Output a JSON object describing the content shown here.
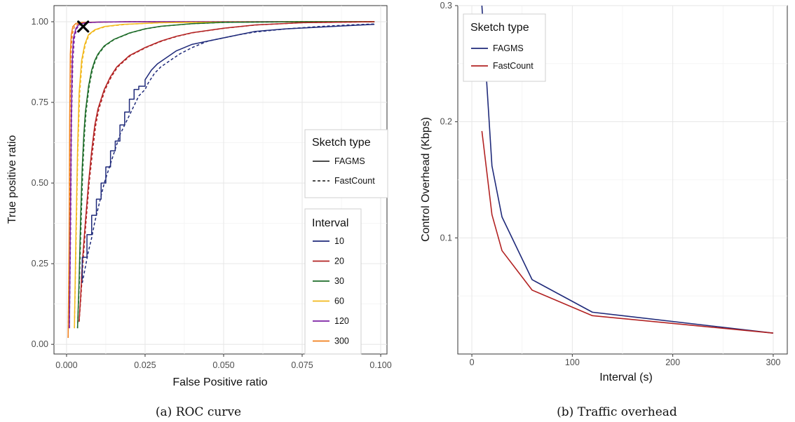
{
  "chart_data": [
    {
      "type": "line",
      "caption": "(a) ROC curve",
      "xlabel": "False Positive ratio",
      "ylabel": "True positive ratio",
      "xlim": [
        -0.004,
        0.102
      ],
      "ylim": [
        -0.03,
        1.05
      ],
      "xticks": [
        0.0,
        0.025,
        0.05,
        0.075,
        0.1
      ],
      "xtick_labels": [
        "0.000",
        "0.025",
        "0.050",
        "0.075",
        "0.100"
      ],
      "yticks": [
        0.0,
        0.25,
        0.5,
        0.75,
        1.0
      ],
      "ytick_labels": [
        "0.00",
        "0.25",
        "0.50",
        "0.75",
        "1.00"
      ],
      "grid": true,
      "linetype_legend": {
        "title": "Sketch type",
        "entries": [
          {
            "label": "FAGMS",
            "dash": "solid"
          },
          {
            "label": "FastCount",
            "dash": "dashed"
          }
        ]
      },
      "color_legend": {
        "title": "Interval",
        "entries": [
          {
            "label": "10",
            "color": "#1f2a7a"
          },
          {
            "label": "20",
            "color": "#b22222"
          },
          {
            "label": "30",
            "color": "#1d6b28"
          },
          {
            "label": "60",
            "color": "#f2b81b"
          },
          {
            "label": "120",
            "color": "#7b1fa2"
          },
          {
            "label": "300",
            "color": "#f07f1b"
          }
        ]
      },
      "marker": {
        "symbol": "X",
        "x": 0.0053,
        "y": 0.985
      },
      "series": [
        {
          "interval": "300",
          "sketch": "FAGMS",
          "color": "#f07f1b",
          "dash": "solid",
          "x": [
            0.0005,
            0.0008,
            0.001,
            0.0012,
            0.0015,
            0.002,
            0.003,
            0.005,
            0.01,
            0.02,
            0.05,
            0.098
          ],
          "y": [
            0.02,
            0.3,
            0.7,
            0.9,
            0.96,
            0.985,
            0.995,
            0.998,
            0.999,
            1.0,
            1.0,
            1.0
          ]
        },
        {
          "interval": "300",
          "sketch": "FastCount",
          "color": "#f07f1b",
          "dash": "dashed",
          "x": [
            0.0005,
            0.0009,
            0.0011,
            0.0014,
            0.0018,
            0.0025,
            0.004,
            0.007,
            0.02,
            0.05,
            0.098
          ],
          "y": [
            0.02,
            0.3,
            0.7,
            0.9,
            0.96,
            0.985,
            0.995,
            0.998,
            1.0,
            1.0,
            1.0
          ]
        },
        {
          "interval": "120",
          "sketch": "FAGMS",
          "color": "#7b1fa2",
          "dash": "solid",
          "x": [
            0.0009,
            0.0012,
            0.0015,
            0.0018,
            0.0022,
            0.003,
            0.004,
            0.006,
            0.01,
            0.02,
            0.05,
            0.098
          ],
          "y": [
            0.05,
            0.35,
            0.7,
            0.88,
            0.95,
            0.98,
            0.992,
            0.997,
            0.999,
            1.0,
            1.0,
            1.0
          ]
        },
        {
          "interval": "120",
          "sketch": "FastCount",
          "color": "#7b1fa2",
          "dash": "dashed",
          "x": [
            0.0009,
            0.0013,
            0.0016,
            0.002,
            0.0025,
            0.0033,
            0.0045,
            0.0065,
            0.011,
            0.02,
            0.05,
            0.098
          ],
          "y": [
            0.05,
            0.35,
            0.7,
            0.88,
            0.95,
            0.98,
            0.992,
            0.997,
            0.999,
            1.0,
            1.0,
            1.0
          ]
        },
        {
          "interval": "60",
          "sketch": "FAGMS",
          "color": "#f2b81b",
          "dash": "solid",
          "x": [
            0.0025,
            0.003,
            0.0035,
            0.004,
            0.0048,
            0.0058,
            0.007,
            0.009,
            0.012,
            0.018,
            0.03,
            0.05,
            0.075,
            0.098
          ],
          "y": [
            0.05,
            0.35,
            0.6,
            0.78,
            0.88,
            0.93,
            0.96,
            0.975,
            0.985,
            0.992,
            0.997,
            0.999,
            1.0,
            1.0
          ]
        },
        {
          "interval": "60",
          "sketch": "FastCount",
          "color": "#f2b81b",
          "dash": "dashed",
          "x": [
            0.0025,
            0.0031,
            0.0036,
            0.0042,
            0.005,
            0.006,
            0.0072,
            0.0093,
            0.0125,
            0.019,
            0.03,
            0.05,
            0.075,
            0.098
          ],
          "y": [
            0.05,
            0.35,
            0.6,
            0.78,
            0.88,
            0.93,
            0.96,
            0.975,
            0.985,
            0.992,
            0.997,
            0.999,
            1.0,
            1.0
          ]
        },
        {
          "interval": "30",
          "sketch": "FAGMS",
          "color": "#1d6b28",
          "dash": "solid",
          "x": [
            0.0035,
            0.004,
            0.0045,
            0.005,
            0.0055,
            0.006,
            0.007,
            0.008,
            0.009,
            0.01,
            0.012,
            0.015,
            0.02,
            0.025,
            0.03,
            0.04,
            0.05,
            0.075,
            0.098
          ],
          "y": [
            0.05,
            0.2,
            0.4,
            0.55,
            0.65,
            0.72,
            0.8,
            0.85,
            0.88,
            0.9,
            0.925,
            0.945,
            0.965,
            0.978,
            0.986,
            0.994,
            0.998,
            1.0,
            1.0
          ]
        },
        {
          "interval": "30",
          "sketch": "FastCount",
          "color": "#1d6b28",
          "dash": "dashed",
          "x": [
            0.0035,
            0.0041,
            0.0047,
            0.0052,
            0.0057,
            0.0062,
            0.0072,
            0.0082,
            0.0092,
            0.0102,
            0.0122,
            0.0152,
            0.0202,
            0.0252,
            0.0302,
            0.0402,
            0.0502,
            0.075,
            0.098
          ],
          "y": [
            0.05,
            0.2,
            0.4,
            0.55,
            0.65,
            0.72,
            0.8,
            0.85,
            0.88,
            0.9,
            0.925,
            0.945,
            0.965,
            0.978,
            0.986,
            0.994,
            0.998,
            1.0,
            1.0
          ]
        },
        {
          "interval": "20",
          "sketch": "FAGMS",
          "color": "#b22222",
          "dash": "solid",
          "x": [
            0.004,
            0.0045,
            0.005,
            0.006,
            0.007,
            0.008,
            0.009,
            0.01,
            0.012,
            0.014,
            0.016,
            0.02,
            0.025,
            0.03,
            0.035,
            0.04,
            0.05,
            0.06,
            0.075,
            0.098
          ],
          "y": [
            0.07,
            0.15,
            0.25,
            0.38,
            0.5,
            0.6,
            0.68,
            0.73,
            0.79,
            0.83,
            0.86,
            0.895,
            0.92,
            0.94,
            0.955,
            0.966,
            0.98,
            0.99,
            0.997,
            1.0
          ]
        },
        {
          "interval": "20",
          "sketch": "FastCount",
          "color": "#b22222",
          "dash": "dashed",
          "x": [
            0.004,
            0.0046,
            0.0052,
            0.0062,
            0.0072,
            0.0083,
            0.0093,
            0.0103,
            0.0123,
            0.0143,
            0.0163,
            0.0203,
            0.0253,
            0.0303,
            0.0353,
            0.0403,
            0.0503,
            0.0603,
            0.075,
            0.098
          ],
          "y": [
            0.07,
            0.15,
            0.25,
            0.38,
            0.5,
            0.6,
            0.68,
            0.73,
            0.79,
            0.83,
            0.86,
            0.895,
            0.92,
            0.94,
            0.955,
            0.966,
            0.98,
            0.99,
            0.997,
            1.0
          ]
        },
        {
          "interval": "10",
          "sketch": "FAGMS",
          "color": "#1f2a7a",
          "dash": "solid",
          "x": [
            0.005,
            0.005,
            0.0065,
            0.0065,
            0.008,
            0.008,
            0.0095,
            0.0095,
            0.011,
            0.011,
            0.0125,
            0.0125,
            0.014,
            0.014,
            0.0155,
            0.0155,
            0.017,
            0.017,
            0.0185,
            0.0185,
            0.02,
            0.02,
            0.0215,
            0.0215,
            0.023,
            0.023,
            0.025,
            0.025,
            0.027,
            0.029,
            0.032,
            0.035,
            0.04,
            0.045,
            0.05,
            0.055,
            0.06,
            0.07,
            0.08,
            0.09,
            0.098
          ],
          "y": [
            0.2,
            0.27,
            0.27,
            0.34,
            0.34,
            0.4,
            0.4,
            0.45,
            0.45,
            0.5,
            0.5,
            0.55,
            0.55,
            0.6,
            0.6,
            0.63,
            0.63,
            0.68,
            0.68,
            0.72,
            0.72,
            0.76,
            0.76,
            0.79,
            0.79,
            0.8,
            0.8,
            0.82,
            0.85,
            0.87,
            0.89,
            0.91,
            0.93,
            0.94,
            0.95,
            0.96,
            0.97,
            0.978,
            0.983,
            0.988,
            0.992
          ]
        },
        {
          "interval": "10",
          "sketch": "FastCount",
          "color": "#1f2a7a",
          "dash": "dashed",
          "x": [
            0.005,
            0.006,
            0.007,
            0.008,
            0.009,
            0.01,
            0.011,
            0.012,
            0.013,
            0.014,
            0.015,
            0.016,
            0.017,
            0.018,
            0.019,
            0.02,
            0.021,
            0.022,
            0.023,
            0.024,
            0.025,
            0.026,
            0.028,
            0.03,
            0.033,
            0.036,
            0.04,
            0.045,
            0.05,
            0.055,
            0.06,
            0.07,
            0.08,
            0.09,
            0.098
          ],
          "y": [
            0.19,
            0.24,
            0.29,
            0.33,
            0.38,
            0.42,
            0.46,
            0.5,
            0.53,
            0.56,
            0.59,
            0.62,
            0.65,
            0.67,
            0.69,
            0.71,
            0.73,
            0.75,
            0.77,
            0.78,
            0.79,
            0.81,
            0.84,
            0.86,
            0.88,
            0.9,
            0.92,
            0.94,
            0.95,
            0.96,
            0.968,
            0.978,
            0.985,
            0.99,
            0.993
          ]
        }
      ]
    },
    {
      "type": "line",
      "caption": "(b) Traffic overhead",
      "xlabel": "Interval (s)",
      "ylabel": "Control Overhead (Kbps)",
      "xlim": [
        -14,
        314
      ],
      "ylim": [
        0.0,
        0.3
      ],
      "xticks": [
        0,
        100,
        200,
        300
      ],
      "xtick_labels": [
        "0",
        "100",
        "200",
        "300"
      ],
      "yticks": [
        0.1,
        0.2,
        0.3
      ],
      "ytick_labels": [
        "0.1",
        "0.2",
        "0.3"
      ],
      "grid": true,
      "legend": {
        "title": "Sketch type",
        "entries": [
          {
            "label": "FAGMS",
            "color": "#1f2a7a"
          },
          {
            "label": "FastCount",
            "color": "#b22222"
          }
        ]
      },
      "series": [
        {
          "name": "FAGMS",
          "color": "#1f2a7a",
          "x": [
            10,
            20,
            30,
            60,
            120,
            300
          ],
          "y": [
            0.3,
            0.162,
            0.118,
            0.064,
            0.036,
            0.018
          ]
        },
        {
          "name": "FastCount",
          "color": "#b22222",
          "x": [
            10,
            20,
            30,
            60,
            120,
            300
          ],
          "y": [
            0.192,
            0.12,
            0.089,
            0.055,
            0.033,
            0.018
          ]
        }
      ]
    }
  ]
}
